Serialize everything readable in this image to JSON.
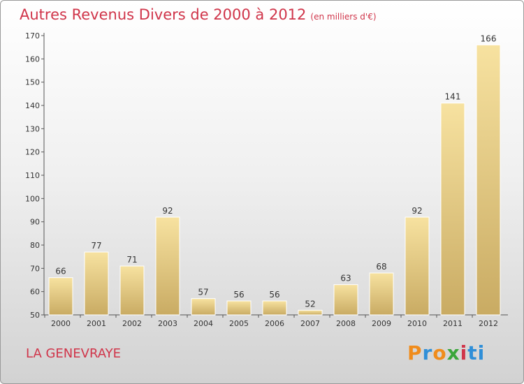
{
  "title": "Autres Revenus Divers de 2000 à 2012",
  "unit": "(en milliers d'€)",
  "commune": "LA GENEVRAYE",
  "logo": [
    "P",
    "r",
    "o",
    "x",
    "i",
    "ti"
  ],
  "colors": {
    "title": "#d0354a",
    "bar_light": "#f7e2a0",
    "bar_dark": "#c9ab63"
  },
  "chart_data": {
    "type": "bar",
    "title": "Autres Revenus Divers de 2000 à 2012",
    "xlabel": "",
    "ylabel": "",
    "categories": [
      "2000",
      "2001",
      "2002",
      "2003",
      "2004",
      "2005",
      "2006",
      "2007",
      "2008",
      "2009",
      "2010",
      "2011",
      "2012"
    ],
    "values": [
      66,
      77,
      71,
      92,
      57,
      56,
      56,
      52,
      63,
      68,
      92,
      141,
      166
    ],
    "ylim": [
      50,
      170
    ],
    "yticks": [
      50,
      60,
      70,
      80,
      90,
      100,
      110,
      120,
      130,
      140,
      150,
      160,
      170
    ],
    "grid": false,
    "legend": "none"
  }
}
